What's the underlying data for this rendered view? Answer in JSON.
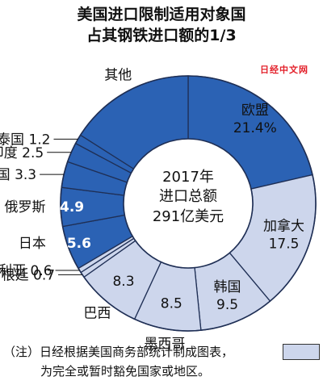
{
  "title_line1": "美国进口限制适用对象国",
  "title_line2": "占其钢铁进口额的1/3",
  "watermark": "日经中文网",
  "center": {
    "line1": "2017年",
    "line2": "进口总额",
    "line3": "291亿美元"
  },
  "note": {
    "line1": "（注）日经根据美国商务部统计制成图表，",
    "line2": "为完全或暂时豁免国家或地区。"
  },
  "colors": {
    "exempt": "#2b62b4",
    "other": "#cdd6ec",
    "edge": "#1f2f55"
  },
  "chart_data": {
    "type": "pie",
    "title": "美国进口限制适用对象国占其钢铁进口额的1/3",
    "unit": "%",
    "slices": [
      {
        "label": "欧盟",
        "value": 21.4,
        "display": "欧盟 21.4%",
        "exempt": false
      },
      {
        "label": "加拿大",
        "value": 17.5,
        "display": "17.5",
        "exempt": true
      },
      {
        "label": "韩国",
        "value": 9.5,
        "display": "9.5",
        "exempt": true
      },
      {
        "label": "墨西哥",
        "value": 8.5,
        "display": "8.5",
        "exempt": true
      },
      {
        "label": "巴西",
        "value": 8.3,
        "display": "8.3",
        "exempt": true
      },
      {
        "label": "阿根廷",
        "value": 0.7,
        "display": "0.7",
        "exempt": true
      },
      {
        "label": "澳大利亚",
        "value": 0.6,
        "display": "0.6",
        "exempt": true
      },
      {
        "label": "日本",
        "value": 5.6,
        "display": "5.6",
        "exempt": false
      },
      {
        "label": "俄罗斯",
        "value": 4.9,
        "display": "4.9",
        "exempt": false
      },
      {
        "label": "中国",
        "value": 3.3,
        "display": "3.3",
        "exempt": false
      },
      {
        "label": "印度",
        "value": 2.5,
        "display": "2.5",
        "exempt": false
      },
      {
        "label": "泰国",
        "value": 1.2,
        "display": "1.2",
        "exempt": false
      },
      {
        "label": "其他",
        "value": 16.0,
        "display": "",
        "exempt": false
      }
    ]
  }
}
